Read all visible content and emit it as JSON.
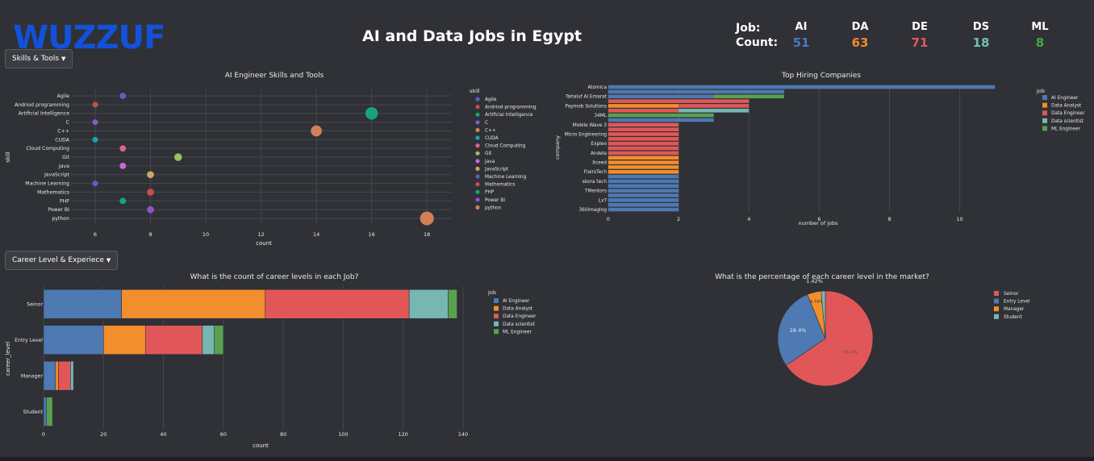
{
  "header": {
    "logo_text": "WUZZUF",
    "title": "AI and Data Jobs in Egypt",
    "kpi_job_label": "Job:",
    "kpi_count_label": "Count:",
    "kpi": [
      {
        "job": "AI",
        "count": "51",
        "color": "#4a78c2"
      },
      {
        "job": "DA",
        "count": "63",
        "color": "#f28a2a"
      },
      {
        "job": "DE",
        "count": "71",
        "color": "#e4575c"
      },
      {
        "job": "DS",
        "count": "18",
        "color": "#71c0b9"
      },
      {
        "job": "ML",
        "count": "8",
        "color": "#4aa34c"
      }
    ]
  },
  "dropdowns": {
    "skills_label": "Skills & Tools",
    "career_label": "Career Level & Experiece"
  },
  "chart_data": [
    {
      "id": "skills",
      "type": "scatter",
      "title": "AI Engineer Skills and Tools",
      "xlabel": "count",
      "ylabel": "skill",
      "legend_title": "skill",
      "xlim": [
        5.3,
        18.9
      ],
      "xticks": [
        6,
        8,
        10,
        12,
        14,
        16,
        18
      ],
      "points": [
        {
          "skill": "Agile",
          "count": 7,
          "color": "#5a61c6"
        },
        {
          "skill": "Andriod programming",
          "count": 6,
          "color": "#c4504d"
        },
        {
          "skill": "Artificial Intelligence",
          "count": 16,
          "color": "#16a57b"
        },
        {
          "skill": "C",
          "count": 6,
          "color": "#8b58c7"
        },
        {
          "skill": "C++",
          "count": 14,
          "color": "#d1805a"
        },
        {
          "skill": "CUDA",
          "count": 6,
          "color": "#1aa2b8"
        },
        {
          "skill": "Cloud Computing",
          "count": 7,
          "color": "#d9678a"
        },
        {
          "skill": "Git",
          "count": 9,
          "color": "#9dbf5e"
        },
        {
          "skill": "Java",
          "count": 7,
          "color": "#c76ad6"
        },
        {
          "skill": "JavaScript",
          "count": 8,
          "color": "#c9a963"
        },
        {
          "skill": "Machine Learning",
          "count": 6,
          "color": "#5a61c6"
        },
        {
          "skill": "Mathematics",
          "count": 8,
          "color": "#c4504d"
        },
        {
          "skill": "PHP",
          "count": 7,
          "color": "#16a57b"
        },
        {
          "skill": "Power BI",
          "count": 8,
          "color": "#8b58c7"
        },
        {
          "skill": "python",
          "count": 18,
          "color": "#d1805a"
        }
      ]
    },
    {
      "id": "companies",
      "type": "bar",
      "orientation": "horizontal",
      "title": "Top Hiring Companies",
      "xlabel": "number of jobs",
      "ylabel": "company",
      "legend_title": "Job",
      "xlim": [
        0,
        11.5
      ],
      "xticks": [
        0,
        2,
        4,
        6,
        8,
        10
      ],
      "series_names": [
        "AI Engineer",
        "Data Analyst",
        "Data Engineer",
        "Data scientist",
        "ML Engineer"
      ],
      "series_colors": [
        "#4e79b2",
        "#f28e2b",
        "#e15759",
        "#76b7b2",
        "#59a14f"
      ],
      "rows": [
        {
          "company": "Atomica",
          "bars": [
            {
              "job": 0,
              "value": 11
            }
          ]
        },
        {
          "company": "",
          "bars": [
            {
              "job": 0,
              "value": 5
            }
          ]
        },
        {
          "company": "Tahaluf Al Emarat",
          "bars": [
            {
              "job": 0,
              "value": 3
            },
            {
              "job": 4,
              "value": 2
            }
          ]
        },
        {
          "company": "",
          "bars": [
            {
              "job": 2,
              "value": 4
            }
          ]
        },
        {
          "company": "Paymob Solutions",
          "bars": [
            {
              "job": 1,
              "value": 2
            },
            {
              "job": 2,
              "value": 2
            }
          ]
        },
        {
          "company": "",
          "bars": [
            {
              "job": 2,
              "value": 2
            },
            {
              "job": 3,
              "value": 2
            }
          ]
        },
        {
          "company": "34ML",
          "bars": [
            {
              "job": 4,
              "value": 3
            }
          ]
        },
        {
          "company": "",
          "bars": [
            {
              "job": 0,
              "value": 3
            }
          ]
        },
        {
          "company": "Mobile Wave 3",
          "bars": [
            {
              "job": 2,
              "value": 2
            }
          ]
        },
        {
          "company": "",
          "bars": [
            {
              "job": 2,
              "value": 2
            }
          ]
        },
        {
          "company": "Micro Engineering",
          "bars": [
            {
              "job": 2,
              "value": 2
            }
          ]
        },
        {
          "company": "",
          "bars": [
            {
              "job": 2,
              "value": 2
            }
          ]
        },
        {
          "company": "Expleo",
          "bars": [
            {
              "job": 2,
              "value": 2
            }
          ]
        },
        {
          "company": "",
          "bars": [
            {
              "job": 2,
              "value": 2
            }
          ]
        },
        {
          "company": "Andela",
          "bars": [
            {
              "job": 2,
              "value": 2
            }
          ]
        },
        {
          "company": "",
          "bars": [
            {
              "job": 1,
              "value": 2
            }
          ]
        },
        {
          "company": "Xceed",
          "bars": [
            {
              "job": 1,
              "value": 2
            }
          ]
        },
        {
          "company": "",
          "bars": [
            {
              "job": 1,
              "value": 2
            }
          ]
        },
        {
          "company": "FlairsTech",
          "bars": [
            {
              "job": 1,
              "value": 2
            }
          ]
        },
        {
          "company": "",
          "bars": [
            {
              "job": 0,
              "value": 2
            }
          ]
        },
        {
          "company": "skora tech",
          "bars": [
            {
              "job": 0,
              "value": 2
            }
          ]
        },
        {
          "company": "",
          "bars": [
            {
              "job": 0,
              "value": 2
            }
          ]
        },
        {
          "company": "TMentors",
          "bars": [
            {
              "job": 0,
              "value": 2
            }
          ]
        },
        {
          "company": "",
          "bars": [
            {
              "job": 0,
              "value": 2
            }
          ]
        },
        {
          "company": "LxT",
          "bars": [
            {
              "job": 0,
              "value": 2
            }
          ]
        },
        {
          "company": "",
          "bars": [
            {
              "job": 0,
              "value": 2
            }
          ]
        },
        {
          "company": "360imaging",
          "bars": [
            {
              "job": 0,
              "value": 2
            }
          ]
        }
      ]
    },
    {
      "id": "career",
      "type": "bar",
      "orientation": "horizontal",
      "stacked": true,
      "title": "What is the count of career levels in each Job?",
      "xlabel": "count",
      "ylabel": "career_level",
      "legend_title": "Job",
      "xlim": [
        0,
        140
      ],
      "xticks": [
        0,
        20,
        40,
        60,
        80,
        100,
        120,
        140
      ],
      "categories": [
        "Seinor",
        "Entry Level",
        "Manager",
        "Student"
      ],
      "series": [
        {
          "name": "AI Engineer",
          "color": "#4e79b2",
          "values": [
            26,
            20,
            4,
            1
          ]
        },
        {
          "name": "Data Analyst",
          "color": "#f28e2b",
          "values": [
            48,
            14,
            1,
            0
          ]
        },
        {
          "name": "Data Engineer",
          "color": "#e15759",
          "values": [
            48,
            19,
            4,
            0
          ]
        },
        {
          "name": "Data scientist",
          "color": "#76b7b2",
          "values": [
            13,
            4,
            1,
            0
          ]
        },
        {
          "name": "ML Engineer",
          "color": "#59a14f",
          "values": [
            3,
            3,
            0,
            2
          ]
        }
      ]
    },
    {
      "id": "pie",
      "type": "pie",
      "title": "What is the percentage of each career level in the market?",
      "slices": [
        {
          "label": "Seinor",
          "value": 65.4,
          "text": "65.4%",
          "color": "#e15759"
        },
        {
          "label": "Entry Level",
          "value": 28.4,
          "text": "28.4%",
          "color": "#4e79b2"
        },
        {
          "label": "Manager",
          "value": 4.74,
          "text": "4.74%",
          "color": "#f28e2b"
        },
        {
          "label": "Student",
          "value": 1.42,
          "text": "1.42%",
          "color": "#76b7b2"
        }
      ]
    }
  ]
}
